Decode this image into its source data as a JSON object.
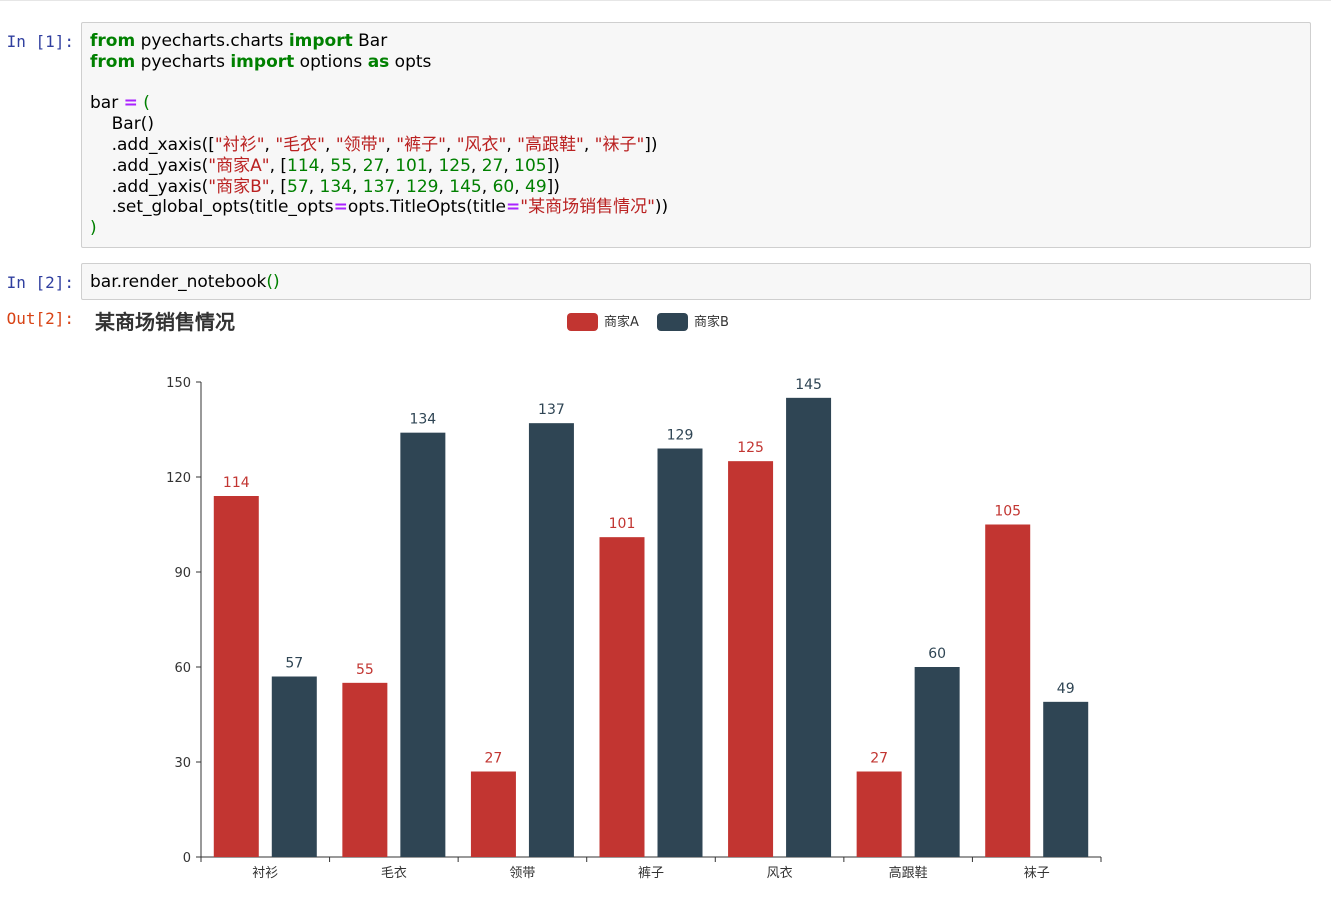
{
  "cells": [
    {
      "prompt": "In [1]:",
      "lines": [
        [
          [
            "from",
            "kw"
          ],
          [
            " pyecharts.charts ",
            ""
          ],
          [
            "import",
            "kw"
          ],
          [
            " Bar",
            ""
          ]
        ],
        [
          [
            "from",
            "kw"
          ],
          [
            " pyecharts ",
            ""
          ],
          [
            "import",
            "kw"
          ],
          [
            " options ",
            ""
          ],
          [
            "as",
            "kw"
          ],
          [
            " opts",
            ""
          ]
        ],
        [],
        [
          [
            "bar ",
            ""
          ],
          [
            "=",
            "op"
          ],
          [
            " ",
            ""
          ],
          [
            "(",
            "par"
          ]
        ],
        [
          [
            "    Bar()",
            ""
          ]
        ],
        [
          [
            "    .add_xaxis([",
            ""
          ],
          [
            "\"衬衫\"",
            "str"
          ],
          [
            ", ",
            ""
          ],
          [
            "\"毛衣\"",
            "str"
          ],
          [
            ", ",
            ""
          ],
          [
            "\"领带\"",
            "str"
          ],
          [
            ", ",
            ""
          ],
          [
            "\"裤子\"",
            "str"
          ],
          [
            ", ",
            ""
          ],
          [
            "\"风衣\"",
            "str"
          ],
          [
            ", ",
            ""
          ],
          [
            "\"高跟鞋\"",
            "str"
          ],
          [
            ", ",
            ""
          ],
          [
            "\"袜子\"",
            "str"
          ],
          [
            "])",
            ""
          ]
        ],
        [
          [
            "    .add_yaxis(",
            ""
          ],
          [
            "\"商家A\"",
            "str"
          ],
          [
            ", [",
            ""
          ],
          [
            "114",
            "num"
          ],
          [
            ", ",
            ""
          ],
          [
            "55",
            "num"
          ],
          [
            ", ",
            ""
          ],
          [
            "27",
            "num"
          ],
          [
            ", ",
            ""
          ],
          [
            "101",
            "num"
          ],
          [
            ", ",
            ""
          ],
          [
            "125",
            "num"
          ],
          [
            ", ",
            ""
          ],
          [
            "27",
            "num"
          ],
          [
            ", ",
            ""
          ],
          [
            "105",
            "num"
          ],
          [
            "])",
            ""
          ]
        ],
        [
          [
            "    .add_yaxis(",
            ""
          ],
          [
            "\"商家B\"",
            "str"
          ],
          [
            ", [",
            ""
          ],
          [
            "57",
            "num"
          ],
          [
            ", ",
            ""
          ],
          [
            "134",
            "num"
          ],
          [
            ", ",
            ""
          ],
          [
            "137",
            "num"
          ],
          [
            ", ",
            ""
          ],
          [
            "129",
            "num"
          ],
          [
            ", ",
            ""
          ],
          [
            "145",
            "num"
          ],
          [
            ", ",
            ""
          ],
          [
            "60",
            "num"
          ],
          [
            ", ",
            ""
          ],
          [
            "49",
            "num"
          ],
          [
            "])",
            ""
          ]
        ],
        [
          [
            "    .set_global_opts(title_opts",
            ""
          ],
          [
            "=",
            "op"
          ],
          [
            "opts.TitleOpts(title",
            ""
          ],
          [
            "=",
            "op"
          ],
          [
            "\"某商场销售情况\"",
            "str"
          ],
          [
            "))",
            ""
          ]
        ],
        [
          [
            ")",
            "par"
          ]
        ]
      ]
    },
    {
      "prompt": "In [2]:",
      "lines": [
        [
          [
            "bar.render_notebook",
            ""
          ],
          [
            "()",
            "par"
          ]
        ]
      ]
    }
  ],
  "output_prompt": "Out[2]:",
  "chart_data": {
    "type": "bar",
    "title": "某商场销售情况",
    "categories": [
      "衬衫",
      "毛衣",
      "领带",
      "裤子",
      "风衣",
      "高跟鞋",
      "袜子"
    ],
    "series": [
      {
        "name": "商家A",
        "color": "#c23531",
        "values": [
          114,
          55,
          27,
          101,
          125,
          27,
          105
        ]
      },
      {
        "name": "商家B",
        "color": "#2f4554",
        "values": [
          57,
          134,
          137,
          129,
          145,
          60,
          49
        ]
      }
    ],
    "yticks": [
      0,
      30,
      60,
      90,
      120,
      150
    ],
    "ylim": [
      0,
      150
    ],
    "legend_position": "top-center",
    "grid": false
  }
}
